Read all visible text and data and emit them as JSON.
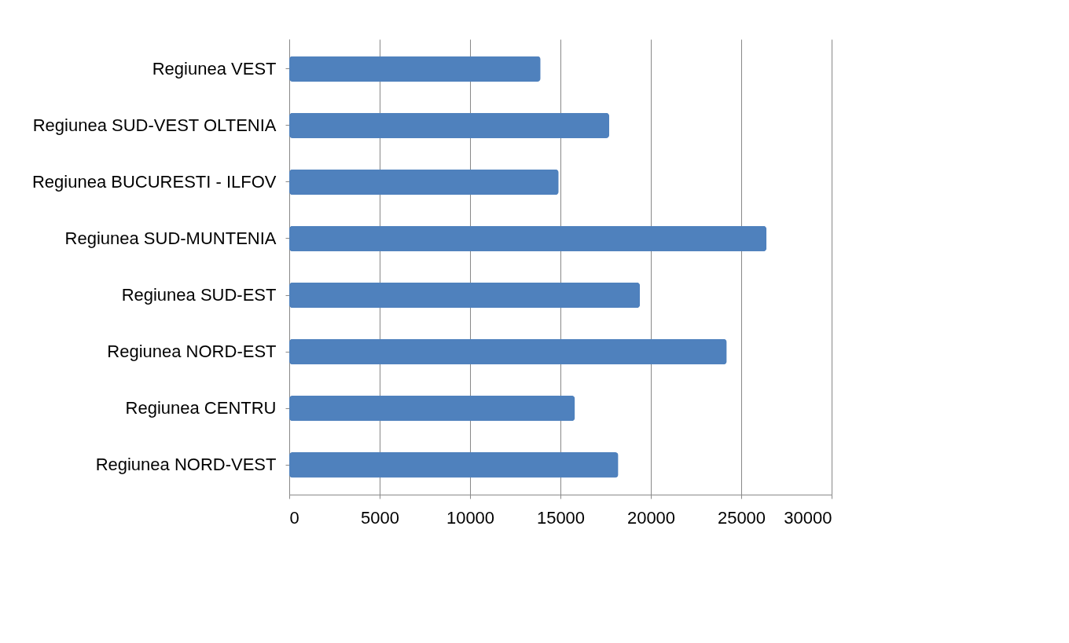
{
  "chart_data": {
    "type": "bar",
    "orientation": "horizontal",
    "categories": [
      "Regiunea VEST",
      "Regiunea SUD-VEST OLTENIA",
      "Regiunea BUCURESTI - ILFOV",
      "Regiunea SUD-MUNTENIA",
      "Regiunea SUD-EST",
      "Regiunea NORD-EST",
      "Regiunea CENTRU",
      "Regiunea NORD-VEST"
    ],
    "values": [
      13900,
      17700,
      14900,
      26400,
      19400,
      24200,
      15800,
      18200
    ],
    "color": "#4f81bd",
    "xlim": [
      0,
      30000
    ],
    "xticks": [
      0,
      5000,
      10000,
      15000,
      20000,
      25000,
      30000
    ],
    "grid": "x"
  }
}
